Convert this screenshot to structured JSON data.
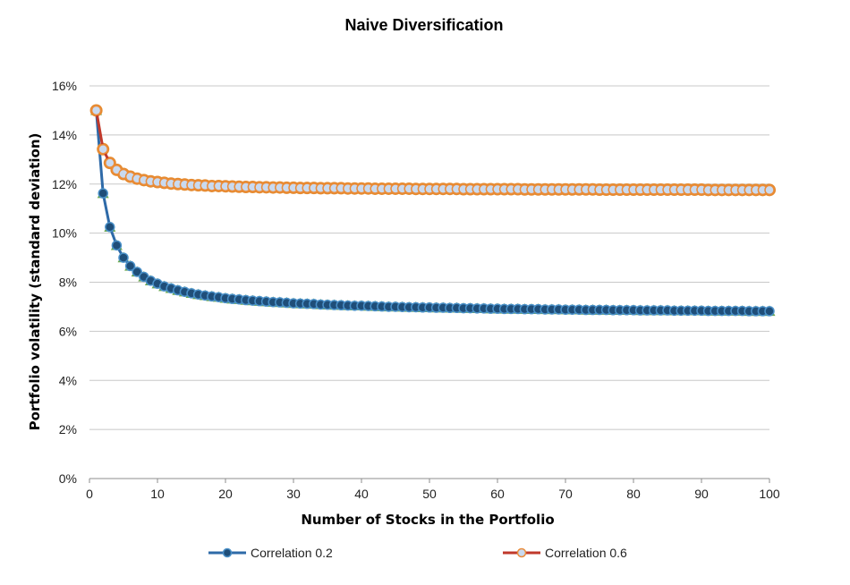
{
  "chart_data": {
    "type": "line",
    "title": "Naive Diversification",
    "xlabel": "Number of Stocks in the Portfolio",
    "ylabel": "Portfolio volatility  (standard deviation)",
    "xlim": [
      0,
      100
    ],
    "ylim": [
      0,
      0.16
    ],
    "x_ticks": [
      "0",
      "10",
      "20",
      "30",
      "40",
      "50",
      "60",
      "70",
      "80",
      "90",
      "100"
    ],
    "y_ticks": [
      "0%",
      "2%",
      "4%",
      "6%",
      "8%",
      "10%",
      "12%",
      "14%",
      "16%"
    ],
    "grid": true,
    "legend_position": "bottom",
    "x": [
      1,
      2,
      3,
      4,
      5,
      6,
      7,
      8,
      9,
      10,
      11,
      12,
      13,
      14,
      15,
      16,
      17,
      18,
      19,
      20,
      21,
      22,
      23,
      24,
      25,
      26,
      27,
      28,
      29,
      30,
      31,
      32,
      33,
      34,
      35,
      36,
      37,
      38,
      39,
      40,
      41,
      42,
      43,
      44,
      45,
      46,
      47,
      48,
      49,
      50,
      51,
      52,
      53,
      54,
      55,
      56,
      57,
      58,
      59,
      60,
      61,
      62,
      63,
      64,
      65,
      66,
      67,
      68,
      69,
      70,
      71,
      72,
      73,
      74,
      75,
      76,
      77,
      78,
      79,
      80,
      81,
      82,
      83,
      84,
      85,
      86,
      87,
      88,
      89,
      90,
      91,
      92,
      93,
      94,
      95,
      96,
      97,
      98,
      99,
      100
    ],
    "series": [
      {
        "name": "Correlation 0.2",
        "color": "#2e6aa8",
        "values": [
          0.15,
          0.1162,
          0.1025,
          0.095,
          0.09,
          0.0866,
          0.0842,
          0.0822,
          0.0806,
          0.0794,
          0.0783,
          0.0775,
          0.0767,
          0.0761,
          0.0755,
          0.075,
          0.0746,
          0.0742,
          0.0739,
          0.0735,
          0.0732,
          0.073,
          0.0727,
          0.0725,
          0.0723,
          0.0721,
          0.0719,
          0.0718,
          0.0716,
          0.0714,
          0.0713,
          0.0712,
          0.0711,
          0.0709,
          0.0708,
          0.0707,
          0.0706,
          0.0705,
          0.0704,
          0.0704,
          0.0703,
          0.0702,
          0.0701,
          0.07,
          0.07,
          0.0699,
          0.0698,
          0.0698,
          0.0697,
          0.0697,
          0.0696,
          0.0696,
          0.0695,
          0.0695,
          0.0694,
          0.0694,
          0.0693,
          0.0693,
          0.0692,
          0.0692,
          0.0691,
          0.0691,
          0.0691,
          0.069,
          0.069,
          0.069,
          0.0689,
          0.0689,
          0.0689,
          0.0688,
          0.0688,
          0.0688,
          0.0687,
          0.0687,
          0.0687,
          0.0687,
          0.0686,
          0.0686,
          0.0686,
          0.0686,
          0.0685,
          0.0685,
          0.0685,
          0.0685,
          0.0685,
          0.0684,
          0.0684,
          0.0684,
          0.0684,
          0.0684,
          0.0683,
          0.0683,
          0.0683,
          0.0683,
          0.0683,
          0.0683,
          0.0682,
          0.0682,
          0.0682,
          0.0682
        ]
      },
      {
        "name": "Correlation 0.6",
        "color": "#c0392b",
        "values": [
          0.15,
          0.1342,
          0.1286,
          0.1258,
          0.1241,
          0.123,
          0.1222,
          0.1216,
          0.1211,
          0.1208,
          0.1205,
          0.1202,
          0.12,
          0.1198,
          0.1196,
          0.1195,
          0.1194,
          0.1192,
          0.1192,
          0.1191,
          0.119,
          0.1189,
          0.1188,
          0.1188,
          0.1187,
          0.1187,
          0.1186,
          0.1186,
          0.1185,
          0.1185,
          0.1184,
          0.1184,
          0.1184,
          0.1183,
          0.1183,
          0.1183,
          0.1183,
          0.1182,
          0.1182,
          0.1182,
          0.1182,
          0.1181,
          0.1181,
          0.1181,
          0.1181,
          0.1181,
          0.1181,
          0.118,
          0.118,
          0.118,
          0.118,
          0.118,
          0.118,
          0.118,
          0.1179,
          0.1179,
          0.1179,
          0.1179,
          0.1179,
          0.1179,
          0.1179,
          0.1179,
          0.1179,
          0.1178,
          0.1178,
          0.1178,
          0.1178,
          0.1178,
          0.1178,
          0.1178,
          0.1178,
          0.1178,
          0.1178,
          0.1178,
          0.1177,
          0.1177,
          0.1177,
          0.1177,
          0.1177,
          0.1177,
          0.1177,
          0.1177,
          0.1177,
          0.1177,
          0.1177,
          0.1177,
          0.1177,
          0.1177,
          0.1177,
          0.1177,
          0.1176,
          0.1176,
          0.1176,
          0.1176,
          0.1176,
          0.1176,
          0.1176,
          0.1176,
          0.1176,
          0.1176
        ]
      }
    ]
  }
}
